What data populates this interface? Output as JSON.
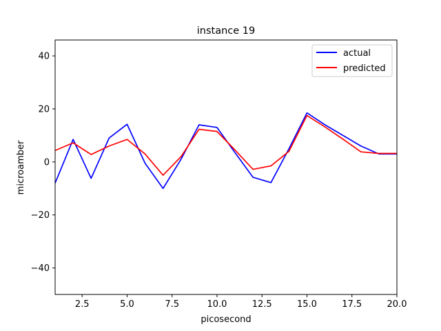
{
  "chart_data": {
    "type": "line",
    "title": "instance 19",
    "xlabel": "picosecond",
    "ylabel": "microamber",
    "xlim": [
      1,
      20
    ],
    "ylim": [
      -50,
      46
    ],
    "xticks": [
      2.5,
      5.0,
      7.5,
      10.0,
      12.5,
      15.0,
      17.5,
      20.0
    ],
    "xtick_labels": [
      "2.5",
      "5.0",
      "7.5",
      "10.0",
      "12.5",
      "15.0",
      "17.5",
      "20.0"
    ],
    "yticks": [
      -40,
      -20,
      0,
      20,
      40
    ],
    "ytick_labels": [
      "−40",
      "−20",
      "0",
      "20",
      "40"
    ],
    "grid": false,
    "legend_position": "top-right",
    "x": [
      1,
      2,
      3,
      4,
      5,
      6,
      7,
      8,
      9,
      10,
      11,
      12,
      13,
      14,
      15,
      16,
      17,
      18,
      19,
      20
    ],
    "series": [
      {
        "name": "actual",
        "color": "#0000ff",
        "values": [
          -8.0,
          8.5,
          -6.2,
          9.0,
          14.2,
          -0.5,
          -10.0,
          1.0,
          14.0,
          13.0,
          3.5,
          -5.8,
          -7.8,
          5.0,
          18.5,
          14.0,
          10.0,
          6.0,
          3.0,
          3.0
        ]
      },
      {
        "name": "predicted",
        "color": "#ff0000",
        "values": [
          4.3,
          7.2,
          2.8,
          6.0,
          8.5,
          3.0,
          -5.0,
          2.0,
          12.3,
          11.5,
          4.5,
          -2.8,
          -1.5,
          4.0,
          17.5,
          13.2,
          8.6,
          3.8,
          3.2,
          3.2
        ]
      }
    ]
  }
}
